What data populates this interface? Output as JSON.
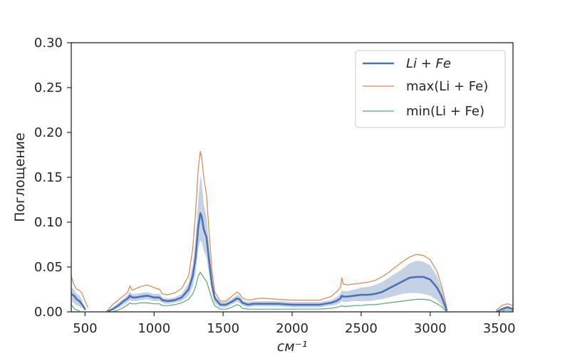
{
  "chart_data": {
    "type": "line",
    "xlabel": "см⁻¹",
    "ylabel": "Поглощение",
    "xlim": [
      400,
      3600
    ],
    "ylim": [
      0,
      0.3
    ],
    "xticks": [
      500,
      1000,
      1500,
      2000,
      2500,
      3000,
      3500
    ],
    "yticks": [
      0.0,
      0.05,
      0.1,
      0.15,
      0.2,
      0.25,
      0.3
    ],
    "ytick_labels": [
      "0.00",
      "0.05",
      "0.10",
      "0.15",
      "0.20",
      "0.25",
      "0.30"
    ],
    "grid": false,
    "legend_position": "top-right",
    "colors": {
      "mean": "#4c72b0",
      "max": "#dd8452",
      "min": "#55a868",
      "band": "#4c72b0"
    },
    "x": [
      400,
      420,
      440,
      460,
      480,
      500,
      520,
      560,
      620,
      660,
      700,
      740,
      780,
      810,
      825,
      840,
      870,
      900,
      950,
      1000,
      1040,
      1060,
      1100,
      1150,
      1200,
      1250,
      1280,
      1300,
      1320,
      1335,
      1345,
      1360,
      1380,
      1400,
      1420,
      1440,
      1480,
      1520,
      1560,
      1600,
      1620,
      1640,
      1680,
      1720,
      1760,
      1800,
      1900,
      2000,
      2100,
      2200,
      2280,
      2320,
      2350,
      2360,
      2370,
      2400,
      2450,
      2500,
      2550,
      2600,
      2650,
      2700,
      2750,
      2800,
      2850,
      2900,
      2950,
      3000,
      3050,
      3080,
      3100,
      3120,
      3140,
      3200,
      3400,
      3480,
      3520,
      3560,
      3600
    ],
    "series": [
      {
        "name": "Li + Fe",
        "values": [
          0.02,
          0.018,
          0.014,
          0.012,
          0.008,
          0.003,
          null,
          null,
          null,
          0.0,
          0.003,
          0.007,
          0.012,
          0.015,
          0.018,
          0.016,
          0.016,
          0.017,
          0.018,
          0.016,
          0.016,
          0.013,
          0.012,
          0.013,
          0.016,
          0.025,
          0.04,
          0.06,
          0.095,
          0.11,
          0.106,
          0.092,
          0.083,
          0.055,
          0.03,
          0.015,
          0.008,
          0.008,
          0.011,
          0.015,
          0.014,
          0.01,
          0.008,
          0.009,
          0.009,
          0.009,
          0.009,
          0.008,
          0.008,
          0.008,
          0.01,
          0.012,
          0.015,
          0.018,
          0.017,
          0.017,
          0.018,
          0.019,
          0.019,
          0.02,
          0.022,
          0.026,
          0.03,
          0.034,
          0.038,
          0.039,
          0.039,
          0.036,
          0.027,
          0.018,
          0.01,
          0.002,
          null,
          null,
          null,
          0.0,
          0.003,
          0.005,
          0.003
        ]
      },
      {
        "name": "max(Li + Fe)",
        "values": [
          0.04,
          0.03,
          0.025,
          0.024,
          0.02,
          0.012,
          0.005,
          null,
          null,
          0.001,
          0.008,
          0.013,
          0.018,
          0.022,
          0.029,
          0.024,
          0.026,
          0.028,
          0.03,
          0.027,
          0.025,
          0.02,
          0.019,
          0.021,
          0.026,
          0.04,
          0.07,
          0.11,
          0.16,
          0.179,
          0.172,
          0.15,
          0.13,
          0.085,
          0.045,
          0.022,
          0.012,
          0.012,
          0.017,
          0.022,
          0.02,
          0.015,
          0.013,
          0.014,
          0.015,
          0.015,
          0.014,
          0.013,
          0.013,
          0.013,
          0.017,
          0.022,
          0.027,
          0.038,
          0.031,
          0.03,
          0.031,
          0.032,
          0.033,
          0.035,
          0.039,
          0.044,
          0.05,
          0.056,
          0.061,
          0.064,
          0.063,
          0.058,
          0.045,
          0.03,
          0.018,
          0.005,
          null,
          null,
          null,
          0.002,
          0.007,
          0.009,
          0.007
        ]
      },
      {
        "name": "min(Li + Fe)",
        "values": [
          0.008,
          0.004,
          0.002,
          0.001,
          null,
          null,
          null,
          null,
          null,
          null,
          0.0,
          0.002,
          0.005,
          0.008,
          0.01,
          0.009,
          0.009,
          0.01,
          0.01,
          0.009,
          0.009,
          0.007,
          0.007,
          0.008,
          0.01,
          0.014,
          0.02,
          0.028,
          0.04,
          0.044,
          0.042,
          0.038,
          0.034,
          0.024,
          0.014,
          0.007,
          0.003,
          0.003,
          0.005,
          0.008,
          0.007,
          0.004,
          0.003,
          0.003,
          0.003,
          0.003,
          0.003,
          0.003,
          0.003,
          0.003,
          0.004,
          0.005,
          0.006,
          0.007,
          0.006,
          0.006,
          0.007,
          0.007,
          0.008,
          0.008,
          0.009,
          0.01,
          0.011,
          0.012,
          0.013,
          0.014,
          0.014,
          0.013,
          0.009,
          0.006,
          0.003,
          0.0,
          null,
          null,
          null,
          null,
          0.001,
          0.002,
          0.001
        ]
      }
    ],
    "band": {
      "lower": [
        0.012,
        0.01,
        0.007,
        0.006,
        0.003,
        null,
        null,
        null,
        null,
        null,
        0.001,
        0.004,
        0.008,
        0.011,
        0.013,
        0.012,
        0.012,
        0.013,
        0.014,
        0.012,
        0.012,
        0.01,
        0.009,
        0.01,
        0.012,
        0.018,
        0.028,
        0.042,
        0.07,
        0.08,
        0.077,
        0.068,
        0.06,
        0.04,
        0.021,
        0.01,
        0.005,
        0.005,
        0.008,
        0.011,
        0.01,
        0.007,
        0.005,
        0.006,
        0.006,
        0.006,
        0.006,
        0.005,
        0.005,
        0.005,
        0.007,
        0.008,
        0.01,
        0.012,
        0.011,
        0.011,
        0.012,
        0.012,
        0.012,
        0.013,
        0.014,
        0.016,
        0.018,
        0.02,
        0.021,
        0.021,
        0.02,
        0.018,
        0.013,
        0.008,
        0.004,
        0.0,
        null,
        null,
        null,
        null,
        0.002,
        0.003,
        0.002
      ],
      "upper": [
        0.028,
        0.025,
        0.02,
        0.018,
        0.013,
        0.007,
        null,
        null,
        null,
        0.0,
        0.005,
        0.01,
        0.015,
        0.019,
        0.023,
        0.02,
        0.02,
        0.021,
        0.022,
        0.02,
        0.02,
        0.016,
        0.015,
        0.016,
        0.02,
        0.032,
        0.052,
        0.08,
        0.125,
        0.152,
        0.145,
        0.12,
        0.106,
        0.07,
        0.038,
        0.019,
        0.011,
        0.011,
        0.014,
        0.019,
        0.018,
        0.013,
        0.011,
        0.012,
        0.012,
        0.012,
        0.012,
        0.011,
        0.011,
        0.011,
        0.013,
        0.016,
        0.02,
        0.025,
        0.023,
        0.023,
        0.025,
        0.027,
        0.028,
        0.03,
        0.033,
        0.038,
        0.043,
        0.048,
        0.054,
        0.057,
        0.056,
        0.052,
        0.04,
        0.027,
        0.016,
        0.004,
        null,
        null,
        null,
        0.001,
        0.005,
        0.007,
        0.005
      ]
    }
  }
}
